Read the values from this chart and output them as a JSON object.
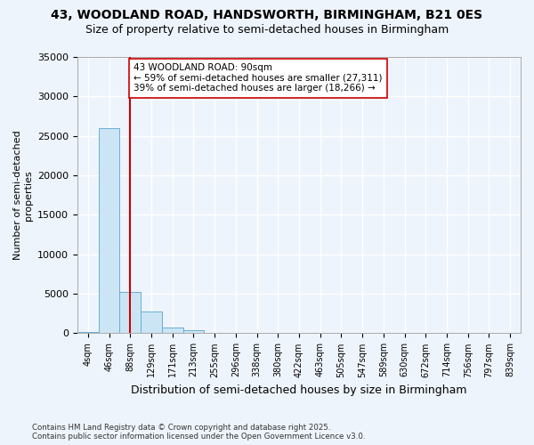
{
  "title_line1": "43, WOODLAND ROAD, HANDSWORTH, BIRMINGHAM, B21 0ES",
  "title_line2": "Size of property relative to semi-detached houses in Birmingham",
  "xlabel": "Distribution of semi-detached houses by size in Birmingham",
  "ylabel": "Number of semi-detached\nproperties",
  "bins": [
    "4sqm",
    "46sqm",
    "88sqm",
    "129sqm",
    "171sqm",
    "213sqm",
    "255sqm",
    "296sqm",
    "338sqm",
    "380sqm",
    "422sqm",
    "463sqm",
    "505sqm",
    "547sqm",
    "589sqm",
    "630sqm",
    "672sqm",
    "714sqm",
    "756sqm",
    "797sqm",
    "839sqm"
  ],
  "bar_heights": [
    200,
    26000,
    5200,
    2800,
    700,
    350,
    100,
    30,
    5,
    2,
    1,
    0,
    0,
    0,
    0,
    0,
    0,
    0,
    0,
    0,
    0
  ],
  "bar_color": "#cce5f5",
  "bar_edge_color": "#6aaed6",
  "vline_x_bin": "88sqm",
  "vline_color": "#cc0000",
  "annotation_text": "43 WOODLAND ROAD: 90sqm\n← 59% of semi-detached houses are smaller (27,311)\n39% of semi-detached houses are larger (18,266) →",
  "annotation_box_color": "#ffffff",
  "annotation_box_edge": "#cc0000",
  "ylim": [
    0,
    35000
  ],
  "yticks": [
    0,
    5000,
    10000,
    15000,
    20000,
    25000,
    30000,
    35000
  ],
  "footnote": "Contains HM Land Registry data © Crown copyright and database right 2025.\nContains public sector information licensed under the Open Government Licence v3.0.",
  "bg_color": "#eef4fb",
  "grid_color": "#ffffff"
}
